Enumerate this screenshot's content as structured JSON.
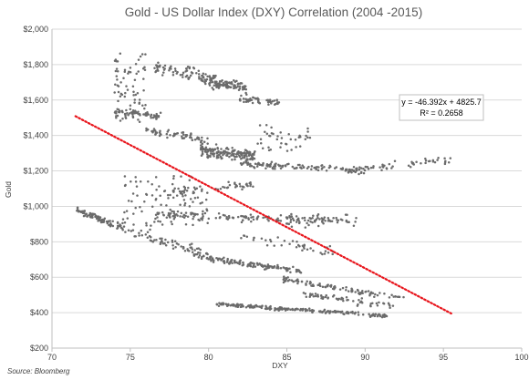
{
  "chart_data": {
    "type": "scatter",
    "title": "Gold - US Dollar Index (DXY) Correlation (2004 -2015)",
    "xlabel": "DXY",
    "ylabel": "Gold",
    "xlim": [
      70,
      100
    ],
    "ylim": [
      200,
      2000
    ],
    "x_ticks": [
      "70",
      "75",
      "80",
      "85",
      "90",
      "95",
      "100"
    ],
    "y_ticks": [
      "$200",
      "$400",
      "$600",
      "$800",
      "$1,000",
      "$1,200",
      "$1,400",
      "$1,600",
      "$1,800",
      "$2,000"
    ],
    "grid": "horizontal",
    "source": "Source: Bloomberg",
    "point_color": "#6b6b6b",
    "trendline": {
      "equation": "y = -46.392x + 4825.7",
      "r_squared": "R² = 0.2658",
      "slope": -46.392,
      "intercept": 4825.7,
      "x_range": [
        71.5,
        95.5
      ],
      "color": "#e8141b",
      "style": "dotted"
    },
    "clusters": [
      {
        "x": [
          71.5,
          74.5
        ],
        "y": [
          870,
          990
        ],
        "slope": -35,
        "spread": 30,
        "n": 90
      },
      {
        "x": [
          74.0,
          76.0
        ],
        "y": [
          1450,
          1900
        ],
        "slope": 0,
        "spread": 60,
        "n": 70
      },
      {
        "x": [
          74.0,
          77.0
        ],
        "y": [
          1480,
          1560
        ],
        "slope": -10,
        "spread": 30,
        "n": 60
      },
      {
        "x": [
          76.5,
          80.5
        ],
        "y": [
          1650,
          1860
        ],
        "slope": -15,
        "spread": 55,
        "n": 70
      },
      {
        "x": [
          79.5,
          82.5
        ],
        "y": [
          1600,
          1780
        ],
        "slope": -15,
        "spread": 45,
        "n": 110
      },
      {
        "x": [
          82.0,
          84.5
        ],
        "y": [
          1570,
          1620
        ],
        "slope": -5,
        "spread": 25,
        "n": 50
      },
      {
        "x": [
          76.0,
          80.0
        ],
        "y": [
          1350,
          1450
        ],
        "slope": -15,
        "spread": 35,
        "n": 60
      },
      {
        "x": [
          79.5,
          83.0
        ],
        "y": [
          1220,
          1380
        ],
        "slope": -10,
        "spread": 50,
        "n": 160
      },
      {
        "x": [
          82.0,
          90.0
        ],
        "y": [
          1180,
          1260
        ],
        "slope": -5,
        "spread": 30,
        "n": 130
      },
      {
        "x": [
          90.0,
          95.5
        ],
        "y": [
          1180,
          1300
        ],
        "slope": 8,
        "spread": 30,
        "n": 45
      },
      {
        "x": [
          83.0,
          86.5
        ],
        "y": [
          1300,
          1470
        ],
        "slope": 0,
        "spread": 60,
        "n": 40
      },
      {
        "x": [
          74.5,
          80.0
        ],
        "y": [
          880,
          1200
        ],
        "slope": 0,
        "spread": 90,
        "n": 90
      },
      {
        "x": [
          76.5,
          89.0
        ],
        "y": [
          890,
          980
        ],
        "slope": -3,
        "spread": 30,
        "n": 140
      },
      {
        "x": [
          74.5,
          80.0
        ],
        "y": [
          700,
          900
        ],
        "slope": -30,
        "spread": 45,
        "n": 80
      },
      {
        "x": [
          80.0,
          86.0
        ],
        "y": [
          640,
          700
        ],
        "slope": -12,
        "spread": 22,
        "n": 120
      },
      {
        "x": [
          84.5,
          92.5
        ],
        "y": [
          470,
          600
        ],
        "slope": -14,
        "spread": 25,
        "n": 100
      },
      {
        "x": [
          82.0,
          88.0
        ],
        "y": [
          720,
          860
        ],
        "slope": -15,
        "spread": 40,
        "n": 40
      },
      {
        "x": [
          80.5,
          91.5
        ],
        "y": [
          380,
          450
        ],
        "slope": -6,
        "spread": 15,
        "n": 210
      },
      {
        "x": [
          86.0,
          92.0
        ],
        "y": [
          420,
          520
        ],
        "slope": -12,
        "spread": 30,
        "n": 60
      },
      {
        "x": [
          77.0,
          83.0
        ],
        "y": [
          1040,
          1160
        ],
        "slope": 10,
        "spread": 35,
        "n": 60
      },
      {
        "x": [
          85.0,
          89.5
        ],
        "y": [
          880,
          960
        ],
        "slope": 0,
        "spread": 40,
        "n": 30
      }
    ]
  }
}
